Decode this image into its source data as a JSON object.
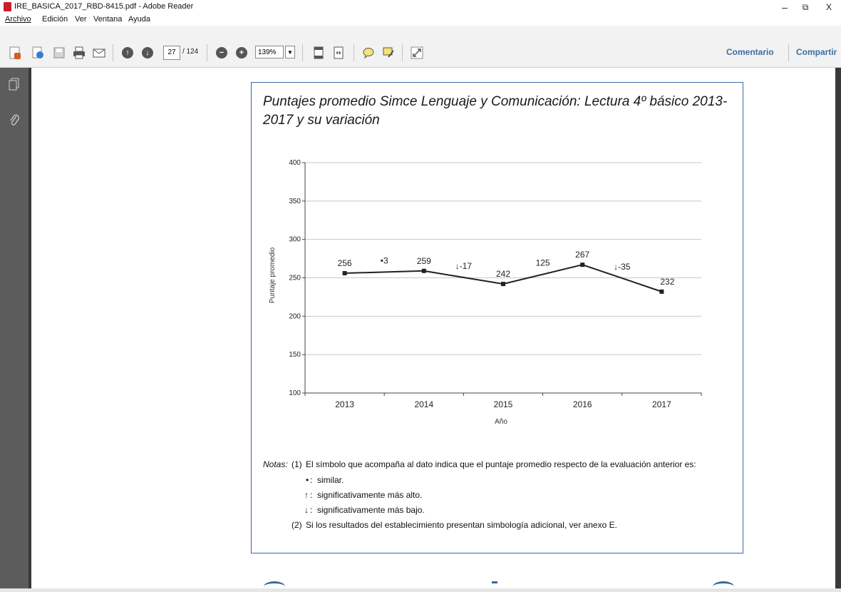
{
  "window": {
    "title": "IRE_BASICA_2017_RBD-8415.pdf - Adobe Reader",
    "minimize": "–",
    "maximize": "⧉",
    "close": "X"
  },
  "menu": [
    "Archivo",
    "Edición",
    "Ver",
    "Ventana",
    "Ayuda"
  ],
  "toolbar": {
    "current_page": "27",
    "page_total": "/ 124",
    "zoom": "139%",
    "comment_label": "Comentario",
    "share_label": "Compartir"
  },
  "document": {
    "chart_title": "Puntajes promedio Simce Lenguaje y Comunicación: Lectura 4º básico 2013-2017 y su variación",
    "notes": {
      "label": "Notas:",
      "n1_num": "(1)",
      "n1_text": "El símbolo que acompaña al dato indica que el puntaje promedio respecto de la evaluación anterior es:",
      "sym_similar": "•",
      "sym_similar_text": "similar.",
      "sym_up": "↑",
      "sym_up_text": "significativamente más alto.",
      "sym_down": "↓",
      "sym_down_text": "significativamente más bajo.",
      "n2_num": "(2)",
      "n2_text": "Si los resultados del establecimiento presentan simbología adicional, ver anexo E."
    }
  },
  "chart_data": {
    "type": "line",
    "x": [
      "2013",
      "2014",
      "2015",
      "2016",
      "2017"
    ],
    "values": [
      256,
      259,
      242,
      267,
      232
    ],
    "value_labels": [
      "256",
      "259",
      "242",
      "267",
      "232"
    ],
    "variation_labels": [
      "•3",
      "↓-17",
      "125",
      "↓-35"
    ],
    "xlabel": "Año",
    "ylabel": "Puntaje promedio",
    "ylim": [
      100,
      400
    ],
    "yticks": [
      "100",
      "150",
      "200",
      "250",
      "300",
      "350",
      "400"
    ],
    "grid": true,
    "line_color": "#222222",
    "grid_color": "#c8c8c8"
  }
}
